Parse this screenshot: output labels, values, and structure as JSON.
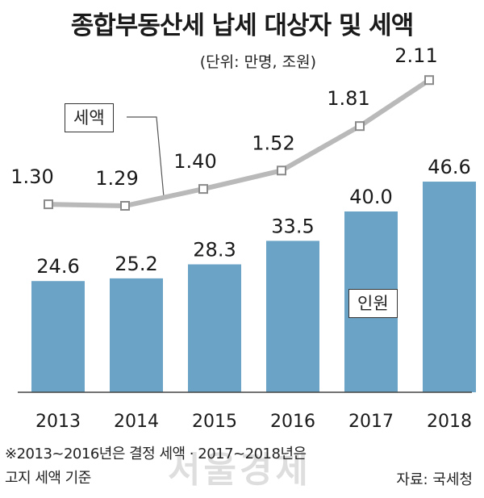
{
  "header": {
    "title": "종합부동산세 납세 대상자 및 세액",
    "unit": "(단위: 만명, 조원)"
  },
  "footer": {
    "note_line1": "※2013~2016년은 결정 세액 · 2017~2018년은",
    "note_line2": "고지 세액 기준",
    "source": "자료: 국세청",
    "watermark": "서울경제"
  },
  "colors": {
    "bar": "#6aa3c6",
    "line": "#b9b9b9",
    "marker_fill": "#ffffff",
    "marker_stroke": "#8a8a8a"
  },
  "chart_data": {
    "type": "bar+line",
    "categories": [
      "2013",
      "2014",
      "2015",
      "2016",
      "2017",
      "2018"
    ],
    "series": [
      {
        "name": "인원",
        "type": "bar",
        "values": [
          24.6,
          25.2,
          28.3,
          33.5,
          40.0,
          46.6
        ],
        "labels": [
          "24.6",
          "25.2",
          "28.3",
          "33.5",
          "40.0",
          "46.6"
        ]
      },
      {
        "name": "세액",
        "type": "line",
        "values": [
          1.3,
          1.29,
          1.4,
          1.52,
          1.81,
          2.11
        ],
        "labels": [
          "1.30",
          "1.29",
          "1.40",
          "1.52",
          "1.81",
          "2.11"
        ]
      }
    ],
    "legend_labels": {
      "line": "세액",
      "bar": "인원"
    }
  }
}
